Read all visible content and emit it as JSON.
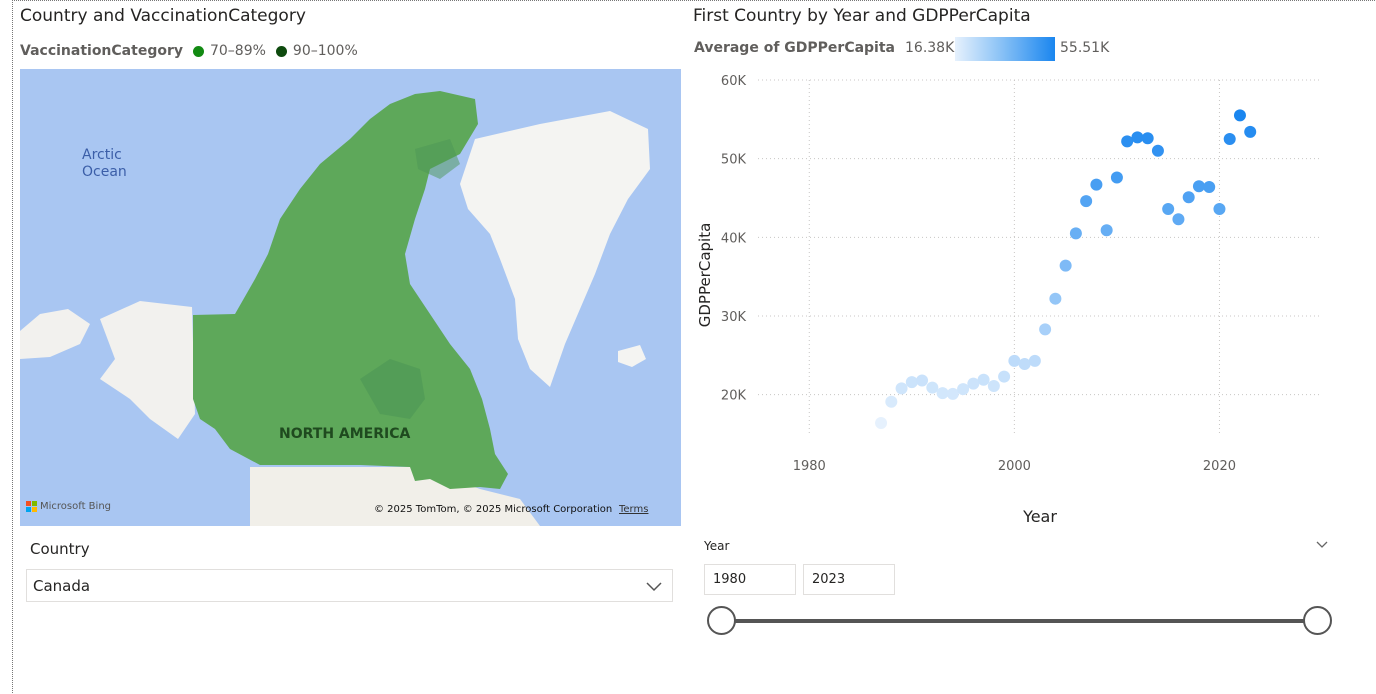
{
  "left_visual": {
    "title": "Country and VaccinationCategory",
    "legend": {
      "title": "VaccinationCategory",
      "items": [
        {
          "label": "70–89%",
          "color": "#128a12"
        },
        {
          "label": "90–100%",
          "color": "#0e4a0e"
        }
      ]
    },
    "map": {
      "ocean_label_1": "Arctic",
      "ocean_label_2": "Ocean",
      "region_label": "NORTH AMERICA",
      "bing_label": "Microsoft Bing",
      "copyright": "© 2025 TomTom, © 2025 Microsoft Corporation",
      "terms": "Terms",
      "country_fill": "#5ea85a",
      "water_color": "#a9c6f2"
    }
  },
  "country_slicer": {
    "header": "Country",
    "selected": "Canada"
  },
  "right_visual": {
    "title": "First Country by Year and GDPPerCapita",
    "legend": {
      "title": "Average of GDPPerCapita",
      "min_label": "16.38K",
      "max_label": "55.51K"
    }
  },
  "year_slicer": {
    "header": "Year",
    "from": "1980",
    "to": "2023",
    "range_start_value": 1980,
    "range_end_value": 2023
  },
  "chart_data": {
    "type": "scatter",
    "title": "First Country by Year and GDPPerCapita",
    "xlabel": "Year",
    "ylabel": "GDPPerCapita",
    "xlim": [
      1975,
      2030
    ],
    "ylim": [
      15000,
      60000
    ],
    "x_ticks": [
      1980,
      2000,
      2020
    ],
    "y_ticks": [
      20000,
      30000,
      40000,
      50000,
      60000
    ],
    "y_tick_labels": [
      "20K",
      "30K",
      "40K",
      "50K",
      "60K"
    ],
    "grid": true,
    "color_scale": {
      "min": 16380,
      "max": 55510,
      "min_color": "#e6f1fd",
      "max_color": "#1a86ef"
    },
    "points": [
      {
        "x": 1987,
        "y": 16400
      },
      {
        "x": 1988,
        "y": 19100
      },
      {
        "x": 1989,
        "y": 20800
      },
      {
        "x": 1990,
        "y": 21600
      },
      {
        "x": 1991,
        "y": 21800
      },
      {
        "x": 1992,
        "y": 20900
      },
      {
        "x": 1993,
        "y": 20200
      },
      {
        "x": 1994,
        "y": 20100
      },
      {
        "x": 1995,
        "y": 20700
      },
      {
        "x": 1996,
        "y": 21400
      },
      {
        "x": 1997,
        "y": 21900
      },
      {
        "x": 1998,
        "y": 21100
      },
      {
        "x": 1999,
        "y": 22300
      },
      {
        "x": 2000,
        "y": 24300
      },
      {
        "x": 2001,
        "y": 23900
      },
      {
        "x": 2002,
        "y": 24300
      },
      {
        "x": 2003,
        "y": 28300
      },
      {
        "x": 2004,
        "y": 32200
      },
      {
        "x": 2005,
        "y": 36400
      },
      {
        "x": 2006,
        "y": 40500
      },
      {
        "x": 2007,
        "y": 44600
      },
      {
        "x": 2008,
        "y": 46700
      },
      {
        "x": 2009,
        "y": 40900
      },
      {
        "x": 2010,
        "y": 47600
      },
      {
        "x": 2011,
        "y": 52200
      },
      {
        "x": 2012,
        "y": 52700
      },
      {
        "x": 2013,
        "y": 52600
      },
      {
        "x": 2014,
        "y": 51000
      },
      {
        "x": 2015,
        "y": 43600
      },
      {
        "x": 2016,
        "y": 42300
      },
      {
        "x": 2017,
        "y": 45100
      },
      {
        "x": 2018,
        "y": 46500
      },
      {
        "x": 2019,
        "y": 46400
      },
      {
        "x": 2020,
        "y": 43600
      },
      {
        "x": 2021,
        "y": 52500
      },
      {
        "x": 2022,
        "y": 55500
      },
      {
        "x": 2023,
        "y": 53400
      }
    ]
  }
}
